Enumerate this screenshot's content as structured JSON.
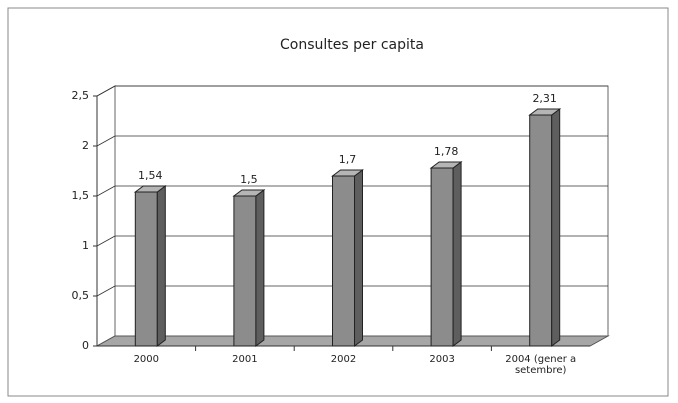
{
  "chart_data": {
    "type": "bar3d",
    "title": "Consultes per capita",
    "categories": [
      "2000",
      "2001",
      "2002",
      "2003",
      "2004 (gener a setembre)"
    ],
    "values": [
      1.54,
      1.5,
      1.7,
      1.78,
      2.31
    ],
    "value_labels": [
      "1,54",
      "1,5",
      "1,7",
      "1,78",
      "2,31"
    ],
    "color": "#8c8c8c",
    "ylim": [
      0,
      2.5
    ],
    "yticks": [
      0,
      {
        "value": 0.5,
        "label": "0,5"
      },
      1,
      {
        "value": 1.5,
        "label": "1,5"
      },
      2,
      {
        "value": 2.5,
        "label": "2,5"
      }
    ],
    "grid": true
  }
}
